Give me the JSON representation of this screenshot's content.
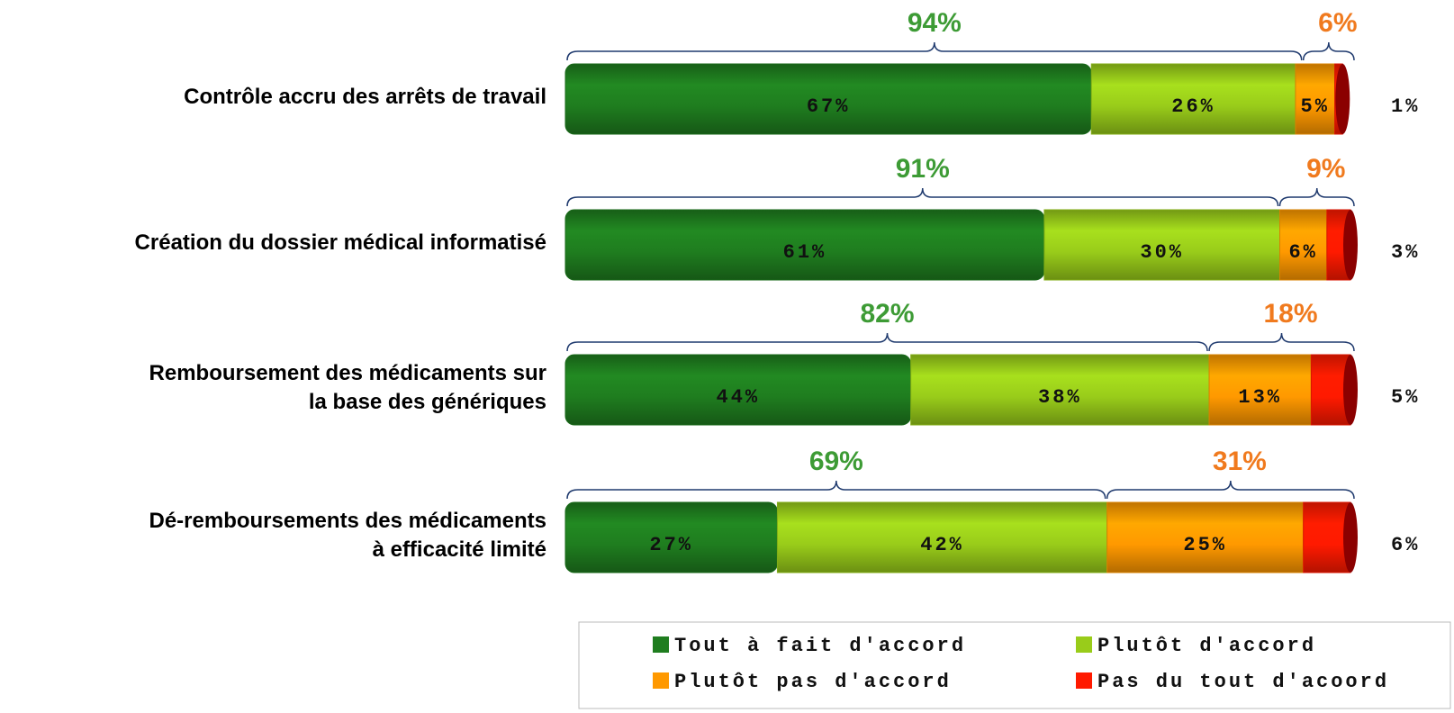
{
  "chart_data": {
    "type": "stacked-bar-horizontal",
    "categories": [
      "Contrôle accru des arrêts de travail",
      "Création du dossier médical informatisé",
      "Remboursement des médicaments sur\nla base des génériques",
      "Dé-remboursements des médicaments\nà efficacité limité"
    ],
    "series": [
      {
        "name": "Tout à fait d'accord",
        "color": "#1f7d1f",
        "values": [
          67,
          61,
          44,
          27
        ],
        "value_labels": [
          "67%",
          "61%",
          "44%",
          "27%"
        ]
      },
      {
        "name": "Plutôt d'accord",
        "color": "#99cc1a",
        "values": [
          26,
          30,
          38,
          42
        ],
        "value_labels": [
          "26%",
          "30%",
          "38%",
          "42%"
        ]
      },
      {
        "name": "Plutôt pas d'accord",
        "color": "#ff9900",
        "values": [
          5,
          6,
          13,
          25
        ],
        "value_labels": [
          "5%",
          "6%",
          "13%",
          "25%"
        ]
      },
      {
        "name": "Pas du tout d'acoord",
        "color": "#ff1a00",
        "values": [
          1,
          3,
          5,
          6
        ],
        "value_labels": [
          "1%",
          "3%",
          "5%",
          "6%"
        ]
      }
    ],
    "totals": [
      {
        "color": "#3d9b35",
        "values": [
          94,
          91,
          82,
          69
        ],
        "value_labels": [
          "94%",
          "91%",
          "82%",
          "69%"
        ]
      },
      {
        "color": "#f07a1e",
        "values": [
          6,
          9,
          18,
          31
        ],
        "value_labels": [
          "6%",
          "9%",
          "18%",
          "31%"
        ]
      }
    ],
    "legend": "bottom"
  }
}
